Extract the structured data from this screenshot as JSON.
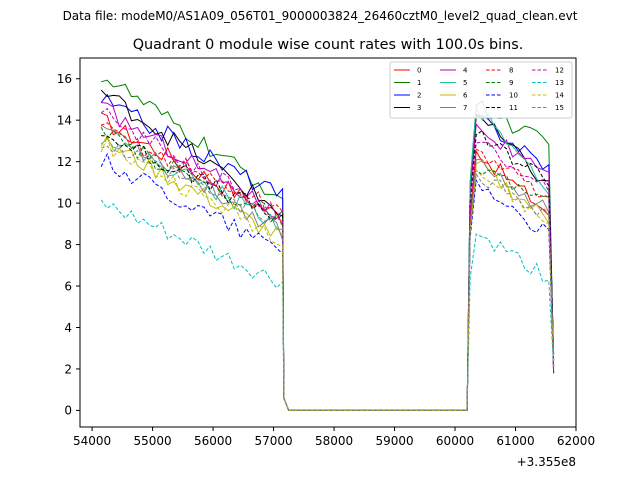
{
  "figure": {
    "suptitle": "Data file: modeM0/AS1A09_056T01_9000003824_26460cztM0_level2_quad_clean.evt"
  },
  "chart_data": {
    "type": "line",
    "title": "Quadrant 0 module wise count rates with 100.0s bins.",
    "xlabel": "",
    "ylabel": "",
    "x_offset_label": "+3.355e8",
    "xlim": [
      53800,
      62000
    ],
    "ylim": [
      -0.8,
      17.0
    ],
    "xticks": [
      54000,
      55000,
      56000,
      57000,
      58000,
      59000,
      60000,
      61000,
      62000
    ],
    "yticks": [
      0,
      2,
      4,
      6,
      8,
      10,
      12,
      14,
      16
    ],
    "legend_position": "top-right",
    "legend_columns": 4,
    "grid": false,
    "x_start": 54150,
    "x_step": 100,
    "gap": {
      "start_index": 30,
      "end_index": 60
    },
    "series": [
      {
        "name": "0",
        "color": "#ff0000",
        "dash": "solid",
        "seg1_start": 14.0,
        "seg1_end": 9.3,
        "seg2_peak": 12.5,
        "seg2_end": 9.5
      },
      {
        "name": "1",
        "color": "#008000",
        "dash": "solid",
        "seg1_start": 16.2,
        "seg1_end": 10.2,
        "seg2_peak": 14.7,
        "seg2_end": 12.8
      },
      {
        "name": "2",
        "color": "#0000ff",
        "dash": "solid",
        "seg1_start": 15.0,
        "seg1_end": 10.3,
        "seg2_peak": 14.2,
        "seg2_end": 11.7
      },
      {
        "name": "3",
        "color": "#000000",
        "dash": "solid",
        "seg1_start": 15.4,
        "seg1_end": 9.5,
        "seg2_peak": 14.3,
        "seg2_end": 10.8
      },
      {
        "name": "4",
        "color": "#bf00bf",
        "dash": "solid",
        "seg1_start": 14.6,
        "seg1_end": 9.4,
        "seg2_peak": 13.8,
        "seg2_end": 11.1
      },
      {
        "name": "5",
        "color": "#20c0a0",
        "dash": "solid",
        "seg1_start": 13.3,
        "seg1_end": 9.0,
        "seg2_peak": 14.6,
        "seg2_end": 10.7
      },
      {
        "name": "6",
        "color": "#bfbf00",
        "dash": "solid",
        "seg1_start": 13.0,
        "seg1_end": 8.3,
        "seg2_peak": 11.9,
        "seg2_end": 9.2
      },
      {
        "name": "7",
        "color": "#808080",
        "dash": "solid",
        "seg1_start": 13.8,
        "seg1_end": 8.6,
        "seg2_peak": 12.1,
        "seg2_end": 9.6
      },
      {
        "name": "8",
        "color": "#ff0000",
        "dash": "dashed",
        "seg1_start": 13.6,
        "seg1_end": 9.6,
        "seg2_peak": 12.6,
        "seg2_end": 10.3
      },
      {
        "name": "9",
        "color": "#008000",
        "dash": "dashed",
        "seg1_start": 13.3,
        "seg1_end": 9.2,
        "seg2_peak": 11.6,
        "seg2_end": 10.1
      },
      {
        "name": "10",
        "color": "#0000ff",
        "dash": "dashed",
        "seg1_start": 12.1,
        "seg1_end": 7.7,
        "seg2_peak": 11.1,
        "seg2_end": 8.4
      },
      {
        "name": "11",
        "color": "#000000",
        "dash": "dashed",
        "seg1_start": 13.4,
        "seg1_end": 9.2,
        "seg2_peak": 13.3,
        "seg2_end": 11.2
      },
      {
        "name": "12",
        "color": "#bf00bf",
        "dash": "dashed",
        "seg1_start": 14.3,
        "seg1_end": 9.4,
        "seg2_peak": 12.9,
        "seg2_end": 10.8
      },
      {
        "name": "13",
        "color": "#00bfbf",
        "dash": "dashed",
        "seg1_start": 9.9,
        "seg1_end": 6.1,
        "seg2_peak": 8.5,
        "seg2_end": 6.4
      },
      {
        "name": "14",
        "color": "#bfbf00",
        "dash": "dashed",
        "seg1_start": 12.9,
        "seg1_end": 8.3,
        "seg2_peak": 11.6,
        "seg2_end": 9.0
      },
      {
        "name": "15",
        "color": "#808080",
        "dash": "dashed",
        "seg1_start": 12.9,
        "seg1_end": 8.9,
        "seg2_peak": 11.4,
        "seg2_end": 9.4
      }
    ]
  }
}
